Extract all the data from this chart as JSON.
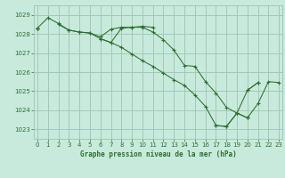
{
  "background_color": "#c8eadc",
  "grid_color": "#a0c8b8",
  "line_color": "#2d6e2d",
  "xlabel": "Graphe pression niveau de la mer (hPa)",
  "xlabel_color": "#2d6e2d",
  "ylim": [
    1022.5,
    1029.5
  ],
  "xlim": [
    -0.3,
    23.3
  ],
  "yticks": [
    1023,
    1024,
    1025,
    1026,
    1027,
    1028,
    1029
  ],
  "xticks": [
    0,
    1,
    2,
    3,
    4,
    5,
    6,
    7,
    8,
    9,
    10,
    11,
    12,
    13,
    14,
    15,
    16,
    17,
    18,
    19,
    20,
    21,
    22,
    23
  ],
  "series": [
    [
      1028.3,
      1028.85,
      1028.55,
      1028.2,
      1028.1,
      1028.05,
      1027.85,
      1028.25,
      1028.35,
      1028.35,
      1028.4,
      1028.35,
      null,
      null,
      null,
      null,
      null,
      null,
      null,
      null,
      null,
      null,
      null,
      null
    ],
    [
      1028.3,
      null,
      null,
      null,
      null,
      null,
      null,
      null,
      null,
      null,
      null,
      null,
      null,
      null,
      null,
      null,
      null,
      null,
      null,
      null,
      1025.05,
      1025.45,
      null,
      null
    ],
    [
      1028.3,
      null,
      1028.5,
      1028.2,
      1028.1,
      1028.05,
      1027.75,
      1027.55,
      1028.3,
      1028.35,
      1028.35,
      1028.1,
      1027.7,
      1027.15,
      1026.35,
      1026.3,
      1025.5,
      1024.9,
      1024.15,
      1023.85,
      1025.05,
      1025.45,
      null,
      null
    ],
    [
      1028.3,
      null,
      null,
      null,
      null,
      null,
      1027.75,
      1027.55,
      1027.3,
      1026.95,
      1026.6,
      1026.3,
      1025.95,
      1025.6,
      1025.3,
      1024.8,
      1024.2,
      1023.2,
      1023.15,
      1023.85,
      1023.6,
      null,
      null,
      null
    ],
    [
      1028.3,
      null,
      null,
      null,
      null,
      null,
      null,
      null,
      null,
      null,
      null,
      null,
      null,
      null,
      null,
      null,
      null,
      1023.2,
      1023.15,
      1023.85,
      1023.6,
      null,
      null,
      null
    ],
    [
      null,
      null,
      null,
      null,
      null,
      null,
      null,
      null,
      null,
      null,
      null,
      null,
      null,
      null,
      null,
      null,
      null,
      null,
      null,
      null,
      1023.6,
      1024.35,
      1025.5,
      1025.45
    ]
  ]
}
